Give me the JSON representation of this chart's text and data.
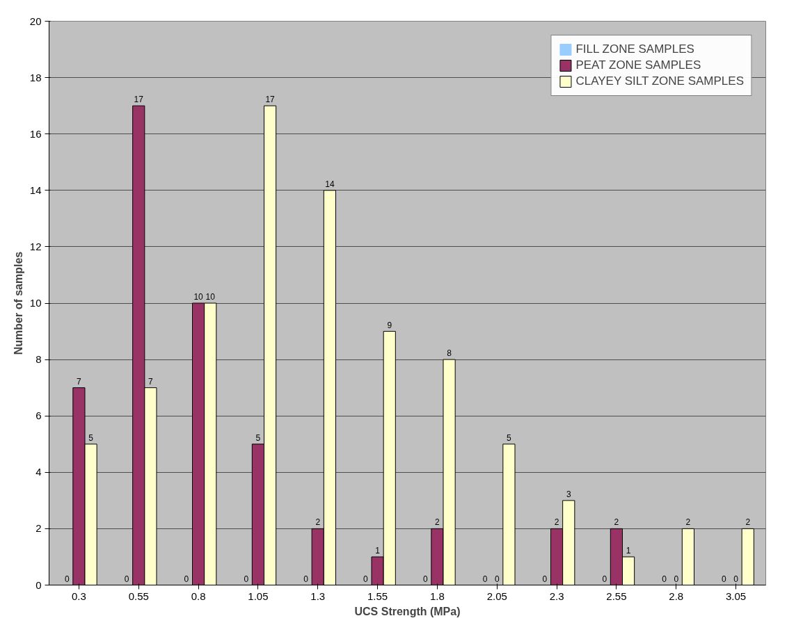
{
  "chart_data": {
    "type": "bar",
    "xlabel": "UCS Strength (MPa)",
    "ylabel": "Number of samples",
    "categories": [
      "0.3",
      "0.55",
      "0.8",
      "1.05",
      "1.3",
      "1.55",
      "1.8",
      "2.05",
      "2.3",
      "2.55",
      "2.8",
      "3.05"
    ],
    "series": [
      {
        "name": "FILL ZONE SAMPLES",
        "color": "#99ccff",
        "values": [
          0,
          0,
          0,
          0,
          0,
          0,
          0,
          0,
          0,
          0,
          0,
          0
        ]
      },
      {
        "name": "PEAT ZONE SAMPLES",
        "color": "#993366",
        "values": [
          7,
          17,
          10,
          5,
          2,
          1,
          2,
          0,
          2,
          2,
          0,
          0
        ]
      },
      {
        "name": "CLAYEY SILT ZONE SAMPLES",
        "color": "#ffffcc",
        "values": [
          5,
          7,
          10,
          17,
          14,
          9,
          8,
          5,
          3,
          1,
          2,
          2
        ]
      }
    ],
    "ylim": [
      0,
      20
    ],
    "yticks": [
      0,
      2,
      4,
      6,
      8,
      10,
      12,
      14,
      16,
      18,
      20
    ],
    "grid": "y",
    "legend": "top right",
    "data_labels": true
  }
}
